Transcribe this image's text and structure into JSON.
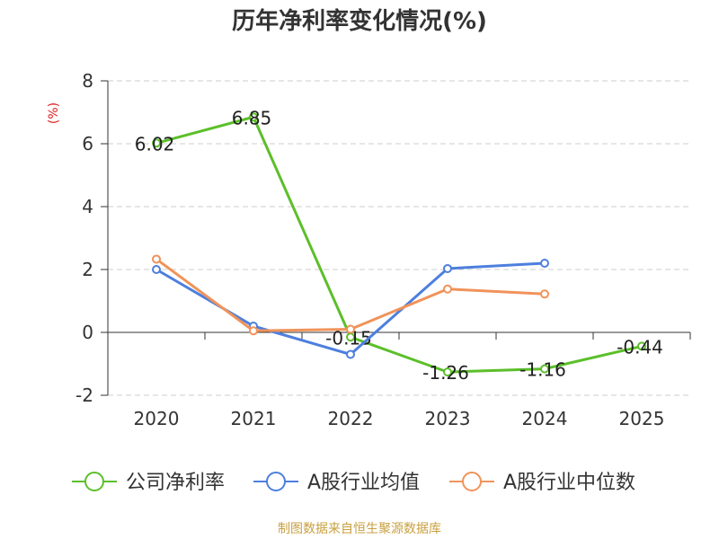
{
  "chart_data": {
    "type": "line",
    "title": "历年净利率变化情况(%)",
    "ylabel": "(%)",
    "categories": [
      "2020",
      "2021",
      "2022",
      "2023",
      "2024",
      "2025"
    ],
    "ylim": [
      -2,
      8
    ],
    "yticks": [
      -2,
      0,
      2,
      4,
      6,
      8
    ],
    "grid": true,
    "legend_position": "bottom",
    "series": [
      {
        "name": "公司净利率",
        "color": "#5cbf2a",
        "values": [
          6.02,
          6.85,
          -0.15,
          -1.26,
          -1.16,
          -0.44
        ],
        "labels": [
          "6.02",
          "6.85",
          "-0.15",
          "-1.26",
          "-1.16",
          "-0.44"
        ]
      },
      {
        "name": "A股行业均值",
        "color": "#4d7fde",
        "values": [
          2.0,
          0.2,
          -0.7,
          2.03,
          2.2,
          null
        ]
      },
      {
        "name": "A股行业中位数",
        "color": "#f0935a",
        "values": [
          2.33,
          0.05,
          0.1,
          1.38,
          1.22,
          null
        ]
      }
    ]
  },
  "source": "制图数据来自恒生聚源数据库"
}
